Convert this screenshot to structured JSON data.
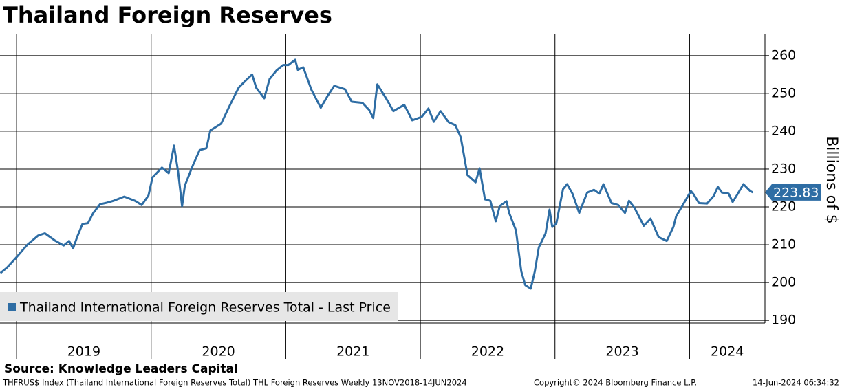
{
  "chart_data": {
    "type": "line",
    "title": "Thailand Foreign Reserves",
    "y_label": "Billions of $",
    "source": "Source: Knowledge Leaders Capital",
    "footer": [
      "THFRUS$ Index (Thailand International Foreign Reserves Total) THL Foreign Reserves  Weekly 13NOV2018-14JUN2024",
      "Copyright© 2024 Bloomberg Finance L.P.",
      "14-Jun-2024 06:34:32"
    ],
    "xlim": [
      2018.877,
      2024.56
    ],
    "xticks": [
      2019,
      2020,
      2021,
      2022,
      2023,
      2024
    ],
    "ylim": [
      189.3,
      265.6
    ],
    "yticks": [
      190,
      200,
      210,
      220,
      230,
      240,
      250,
      260
    ],
    "grid": true,
    "legend": "lower left",
    "x": [
      2018.88,
      2018.93,
      2019.0,
      2019.08,
      2019.16,
      2019.21,
      2019.29,
      2019.35,
      2019.39,
      2019.42,
      2019.45,
      2019.49,
      2019.53,
      2019.57,
      2019.62,
      2019.67,
      2019.72,
      2019.8,
      2019.88,
      2019.93,
      2019.98,
      2020.01,
      2020.08,
      2020.13,
      2020.17,
      2020.2,
      2020.23,
      2020.25,
      2020.31,
      2020.36,
      2020.41,
      2020.44,
      2020.52,
      2020.58,
      2020.65,
      2020.7,
      2020.75,
      2020.78,
      2020.84,
      2020.88,
      2020.93,
      2020.98,
      2021.02,
      2021.07,
      2021.09,
      2021.13,
      2021.19,
      2021.26,
      2021.31,
      2021.36,
      2021.44,
      2021.49,
      2021.57,
      2021.62,
      2021.65,
      2021.68,
      2021.75,
      2021.8,
      2021.88,
      2021.94,
      2022.01,
      2022.06,
      2022.1,
      2022.15,
      2022.21,
      2022.26,
      2022.3,
      2022.35,
      2022.41,
      2022.44,
      2022.48,
      2022.52,
      2022.56,
      2022.59,
      2022.64,
      2022.66,
      2022.71,
      2022.75,
      2022.78,
      2022.82,
      2022.85,
      2022.88,
      2022.93,
      2022.96,
      2022.98,
      2023.01,
      2023.06,
      2023.09,
      2023.13,
      2023.18,
      2023.24,
      2023.29,
      2023.33,
      2023.36,
      2023.42,
      2023.47,
      2023.52,
      2023.55,
      2023.59,
      2023.66,
      2023.71,
      2023.77,
      2023.83,
      2023.88,
      2023.9,
      2023.95,
      2024.01,
      2024.03,
      2024.07,
      2024.13,
      2024.18,
      2024.21,
      2024.24,
      2024.29,
      2024.32,
      2024.35,
      2024.4,
      2024.45,
      2024.47
    ],
    "series": [
      {
        "name": "Thailand International Foreign Reserves Total - Last Price",
        "color": "#2e6da4",
        "values": [
          202.5,
          204,
          206.7,
          210,
          212.4,
          213,
          211,
          209.8,
          211,
          209,
          212,
          215.5,
          215.7,
          218.4,
          220.7,
          221.1,
          221.6,
          222.7,
          221.6,
          220.5,
          223,
          227.8,
          230.4,
          228.9,
          236.2,
          229.3,
          220.2,
          225.6,
          231,
          235,
          235.5,
          240.2,
          242,
          246.5,
          251.5,
          253.3,
          255,
          251.5,
          248.7,
          253.8,
          256,
          257.5,
          257.5,
          258.9,
          256.2,
          256.9,
          251,
          246.2,
          249.3,
          252,
          251.1,
          247.8,
          247.5,
          245.6,
          243.5,
          252.4,
          248.4,
          245.3,
          247,
          242.9,
          243.8,
          246,
          242.5,
          245.3,
          242.4,
          241.6,
          238.4,
          228.4,
          226.5,
          230.2,
          222,
          221.6,
          216.2,
          220.2,
          221.5,
          218.4,
          213.8,
          202.9,
          199.3,
          198.4,
          202.9,
          209.3,
          213,
          219.3,
          214.7,
          215.6,
          224.7,
          226,
          223.5,
          218.4,
          223.8,
          224.5,
          223.5,
          226,
          221,
          220.5,
          218.4,
          221.6,
          219.8,
          215,
          216.9,
          212,
          211,
          214.7,
          217.5,
          220.5,
          224.2,
          223.3,
          221,
          220.9,
          222.9,
          225.3,
          223.8,
          223.5,
          221.3,
          223,
          226,
          224.2,
          223.83
        ]
      }
    ]
  }
}
